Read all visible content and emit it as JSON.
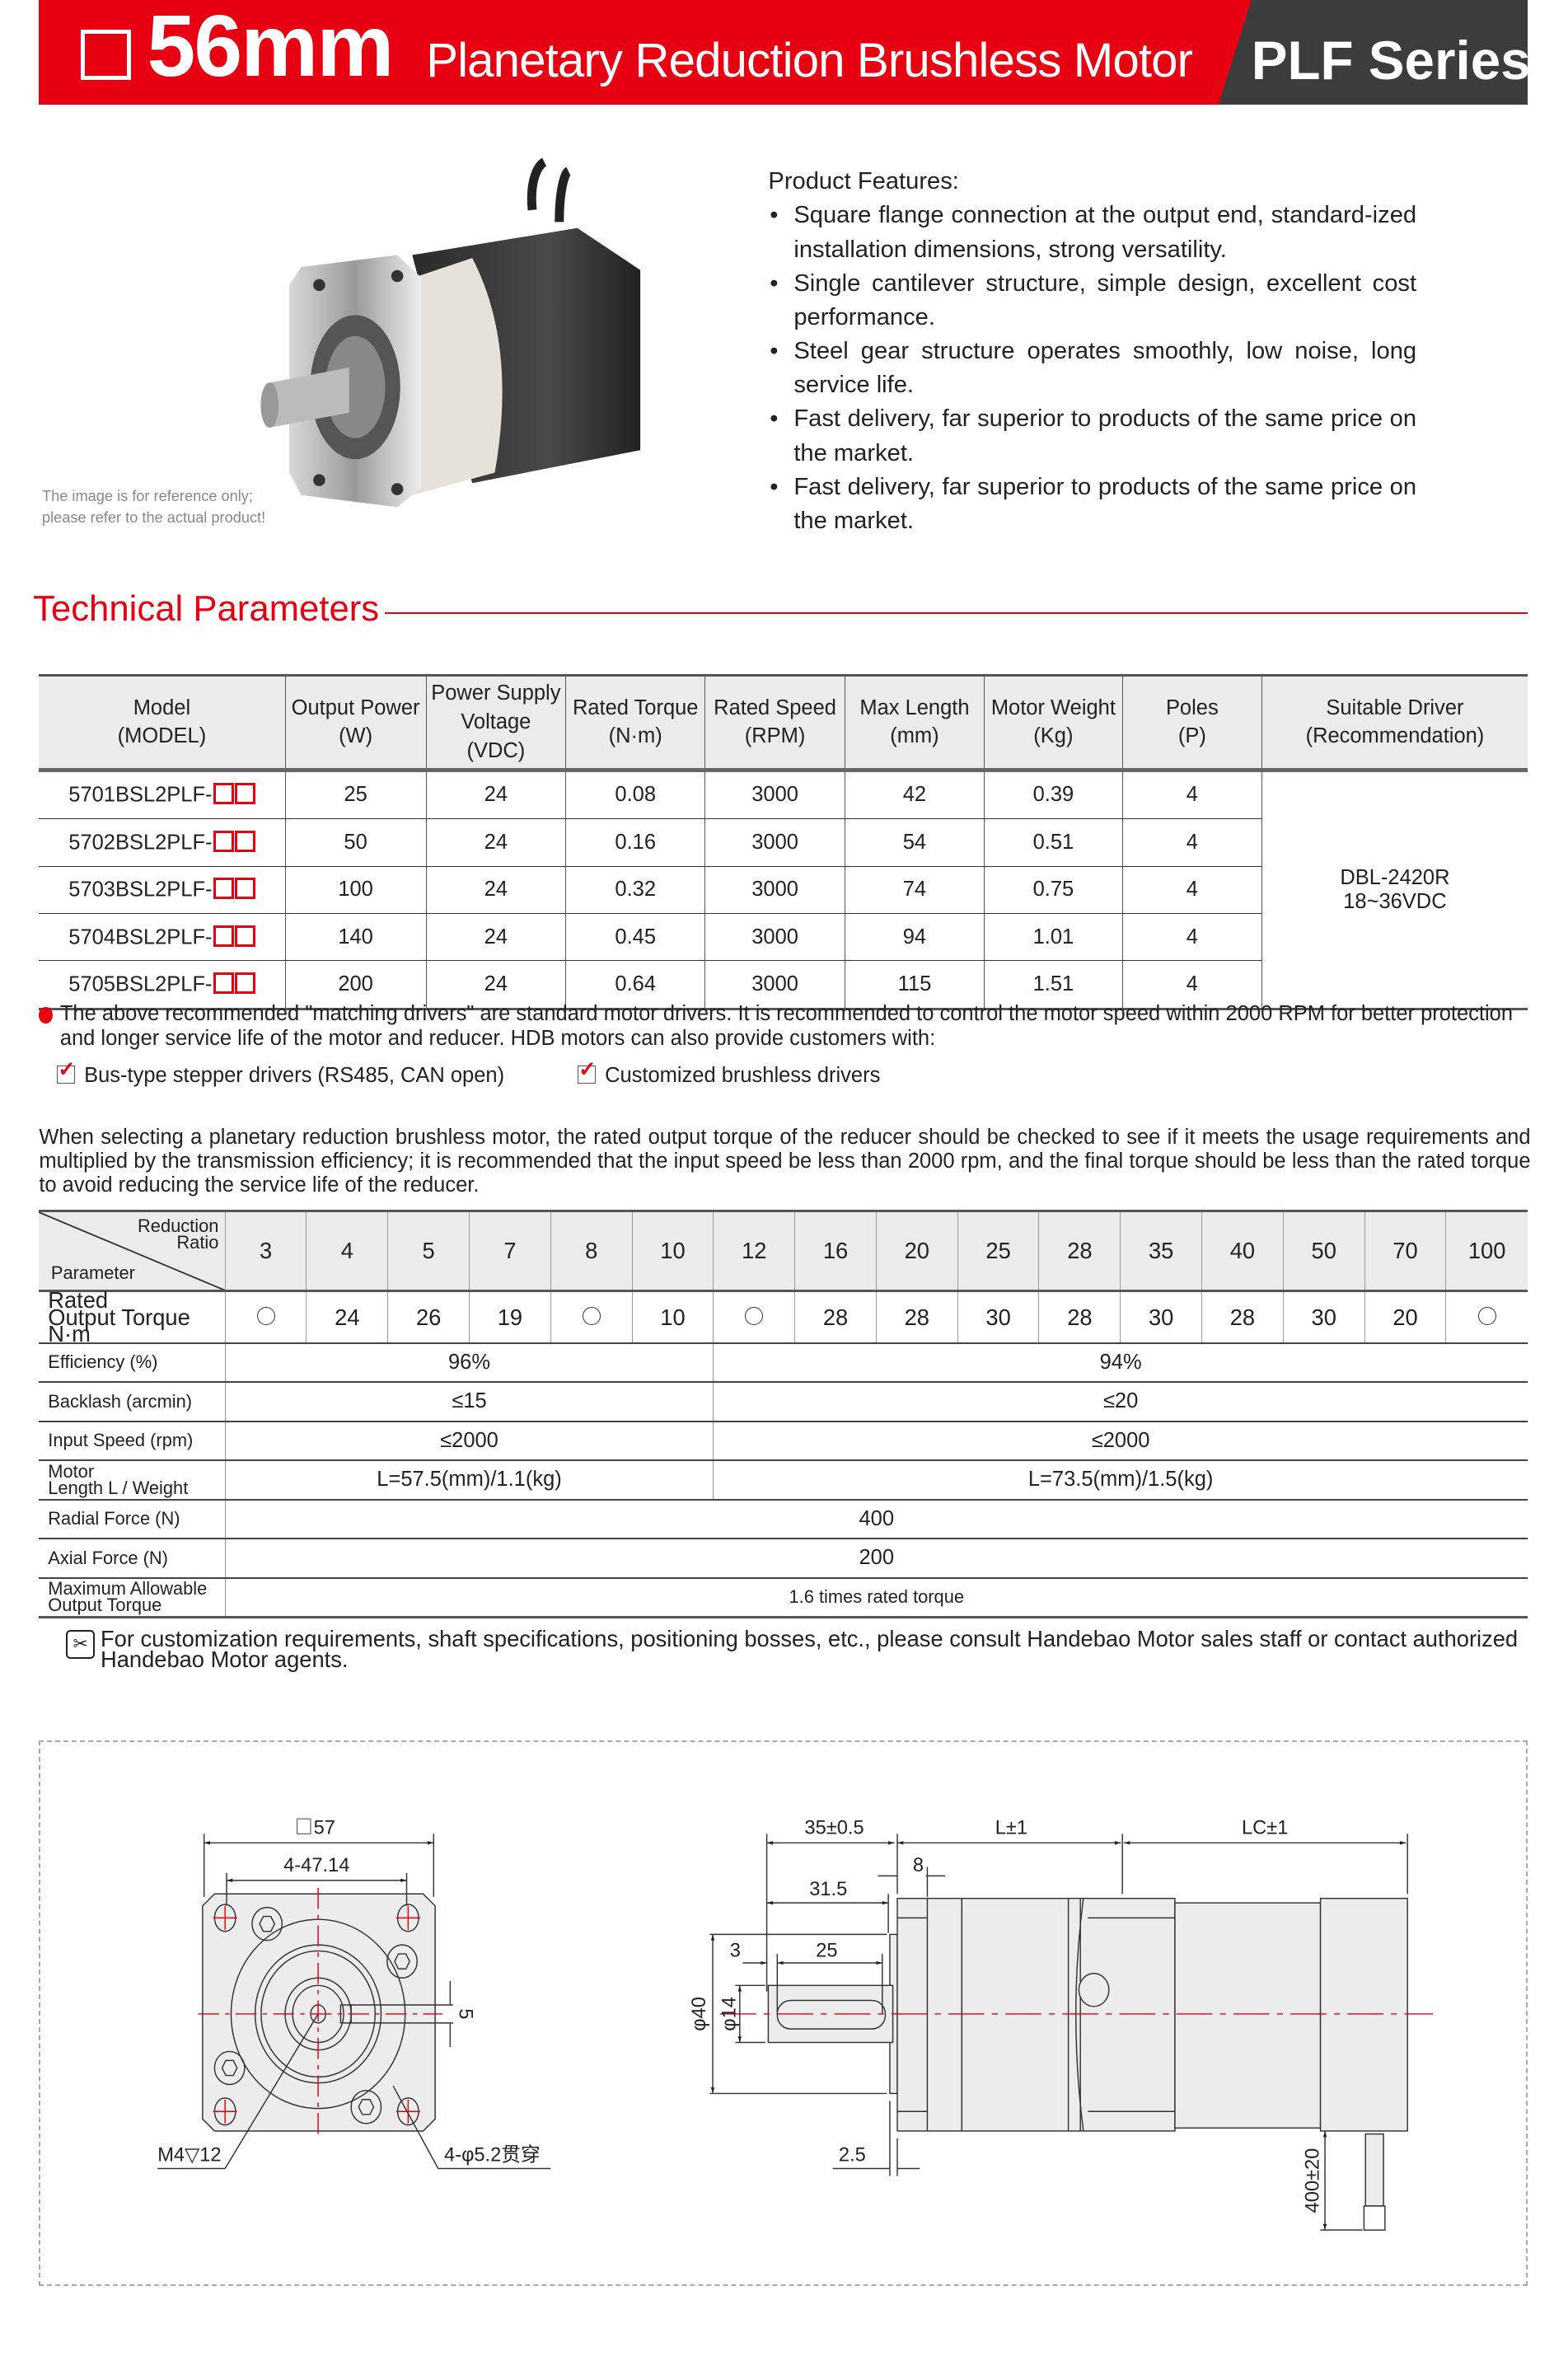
{
  "header": {
    "size": "56mm",
    "title": "Planetary Reduction Brushless Motor",
    "series": "PLF Series",
    "brand_color": "#e60012",
    "dark_color": "#3c3c3c"
  },
  "product": {
    "caption_line1": "The image is for reference only;",
    "caption_line2": "please refer to the actual product!",
    "features_title": "Product Features:",
    "features": [
      "Square flange connection at the output end, standard-ized installation dimensions, strong versatility.",
      "Single cantilever structure, simple design, excellent cost performance.",
      "Steel gear structure operates smoothly, low noise, long service life.",
      "Fast delivery, far superior to products of the same price on the market.",
      "Fast delivery, far superior to products of the same price on the market."
    ]
  },
  "section_title": "Technical Parameters",
  "specs": {
    "headers": [
      [
        "Model",
        "(MODEL)"
      ],
      [
        "Output Power",
        "(W)"
      ],
      [
        "Power Supply Voltage",
        "(VDC)"
      ],
      [
        "Rated Torque",
        "(N·m)"
      ],
      [
        "Rated Speed",
        "(RPM)"
      ],
      [
        "Max Length",
        "(mm)"
      ],
      [
        "Motor Weight",
        "(Kg)"
      ],
      [
        "Poles",
        "(P)"
      ],
      [
        "Suitable Driver",
        "(Recommendation)"
      ]
    ],
    "rows": [
      [
        "5701BSL2PLF-",
        "25",
        "24",
        "0.08",
        "3000",
        "42",
        "0.39",
        "4"
      ],
      [
        "5702BSL2PLF-",
        "50",
        "24",
        "0.16",
        "3000",
        "54",
        "0.51",
        "4"
      ],
      [
        "5703BSL2PLF-",
        "100",
        "24",
        "0.32",
        "3000",
        "74",
        "0.75",
        "4"
      ],
      [
        "5704BSL2PLF-",
        "140",
        "24",
        "0.45",
        "3000",
        "94",
        "1.01",
        "4"
      ],
      [
        "5705BSL2PLF-",
        "200",
        "24",
        "0.64",
        "3000",
        "115",
        "1.51",
        "4"
      ]
    ],
    "driver_line1": "DBL-2420R",
    "driver_line2": "18~36VDC"
  },
  "note": "The above recommended \"matching drivers\" are standard motor drivers. It is recommended to control the motor speed within 2000 RPM for better protection and longer service life of the motor and reducer. HDB motors can also provide customers with:",
  "options": [
    "Bus-type stepper drivers (RS485, CAN open)",
    "Customized brushless drivers"
  ],
  "selection_text": "When selecting a planetary reduction brushless motor, the rated output torque of the reducer should be checked to see if it meets the usage requirements and multiplied by the transmission efficiency; it is recommended that the input speed be less than 2000 rpm, and the final torque should be less than the rated torque to avoid reducing the service life of the reducer.",
  "reducer": {
    "corner_top": "Reduction",
    "corner_top2": "Ratio",
    "corner_bottom": "Parameter",
    "ratios": [
      "3",
      "4",
      "5",
      "7",
      "8",
      "10",
      "12",
      "16",
      "20",
      "25",
      "28",
      "35",
      "40",
      "50",
      "70",
      "100"
    ],
    "torque_label1": "Rated",
    "torque_label2": "Output Torque N·m",
    "torques": [
      "○",
      "24",
      "26",
      "19",
      "○",
      "10",
      "○",
      "28",
      "28",
      "30",
      "28",
      "30",
      "28",
      "30",
      "20",
      "○"
    ],
    "rows": [
      {
        "label": "Efficiency (%)",
        "a": "96%",
        "b": "94%"
      },
      {
        "label": "Backlash (arcmin)",
        "a": "≤15",
        "b": "≤20"
      },
      {
        "label": "Input Speed (rpm)",
        "a": "≤2000",
        "b": "≤2000"
      },
      {
        "label1": "Motor",
        "label2": "Length L / Weight",
        "a": "L=57.5(mm)/1.1(kg)",
        "b": "L=73.5(mm)/1.5(kg)"
      }
    ],
    "radial_label": "Radial Force (N)",
    "radial": "400",
    "axial_label": "Axial Force (N)",
    "axial": "200",
    "max_label1": "Maximum Allowable",
    "max_label2": "Output Torque",
    "max": "1.6 times rated torque"
  },
  "footnote": "For customization requirements, shaft specifications, positioning bosses, etc., please consult Handebao Motor sales staff or contact authorized Handebao Motor agents.",
  "drawing": {
    "front": {
      "square": "57",
      "pitch": "4-47.14",
      "key": "5",
      "tap": "M4▽12",
      "holes": "4-φ5.2贯穿"
    },
    "side": {
      "d1": "35±0.5",
      "d2": "L±1",
      "d3": "LC±1",
      "d4": "8",
      "d5": "31.5",
      "d6": "3",
      "d7": "25",
      "d8": "2.5",
      "dia1": "φ40",
      "dia2": "φ14",
      "cable": "400±20"
    }
  }
}
